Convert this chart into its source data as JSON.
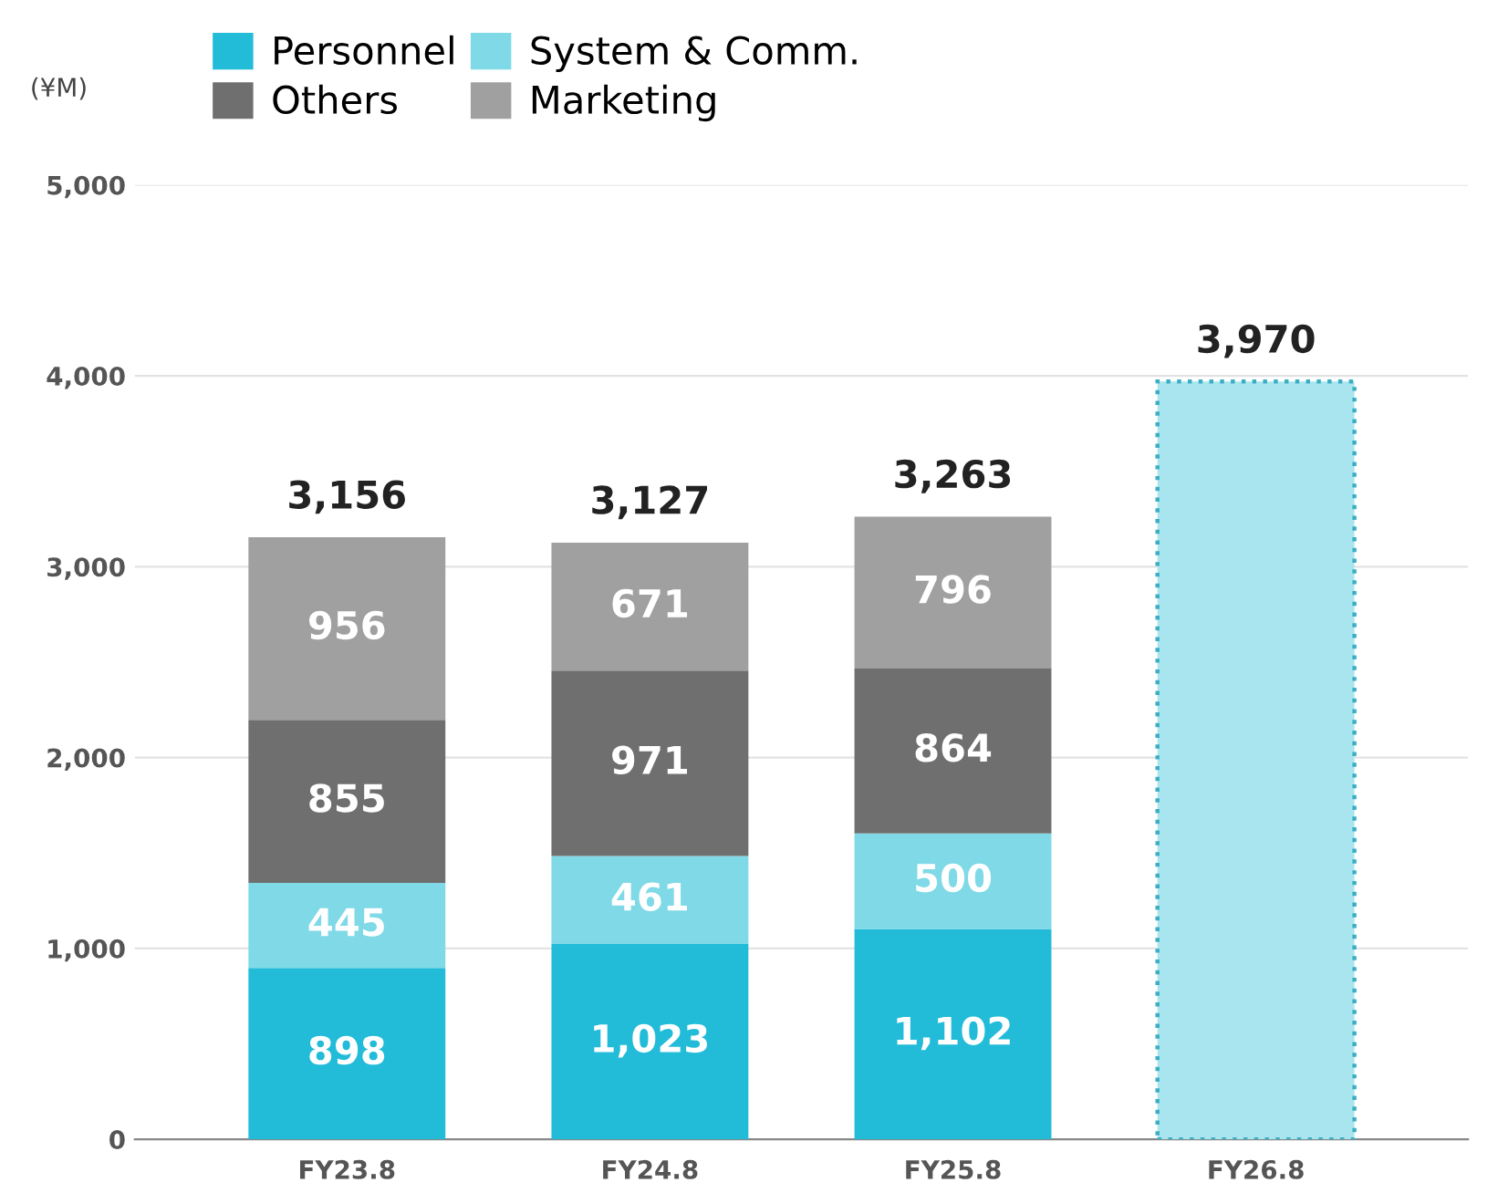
{
  "chart_data": {
    "type": "bar",
    "stacked": true,
    "ylabel": "(¥M)",
    "categories": [
      "FY23.8",
      "FY24.8",
      "FY25.8",
      "FY26.8"
    ],
    "series": [
      {
        "name": "Personnel",
        "color": "#22bcd9",
        "values": [
          898,
          1023,
          1102,
          null
        ],
        "value_labels": [
          "898",
          "1,023",
          "1,102",
          null
        ]
      },
      {
        "name": "System & Comm.",
        "color": "#7fd9e7",
        "values": [
          445,
          461,
          500,
          null
        ],
        "value_labels": [
          "445",
          "461",
          "500",
          null
        ]
      },
      {
        "name": "Others",
        "color": "#6f6f6f",
        "values": [
          855,
          971,
          864,
          null
        ],
        "value_labels": [
          "855",
          "971",
          "864",
          null
        ]
      },
      {
        "name": "Marketing",
        "color": "#a0a0a0",
        "values": [
          956,
          671,
          796,
          null
        ],
        "value_labels": [
          "956",
          "671",
          "796",
          null
        ]
      },
      {
        "color": "#a8e5ee",
        "values": [
          null,
          null,
          null,
          3970
        ],
        "line_style": "dotted"
      }
    ],
    "totals": [
      "3,156",
      "3,127",
      "3,263",
      "3,970"
    ],
    "ylim": [
      0,
      5000
    ],
    "yticks": [
      0,
      {
        "value": 1000,
        "label": "1,000"
      },
      {
        "value": 2000,
        "label": "2,000"
      },
      {
        "value": 3000,
        "label": "3,000"
      },
      {
        "value": 4000,
        "label": "4,000"
      },
      {
        "value": 5000,
        "label": "5,000"
      }
    ],
    "grid": "y",
    "legend": "top left"
  }
}
